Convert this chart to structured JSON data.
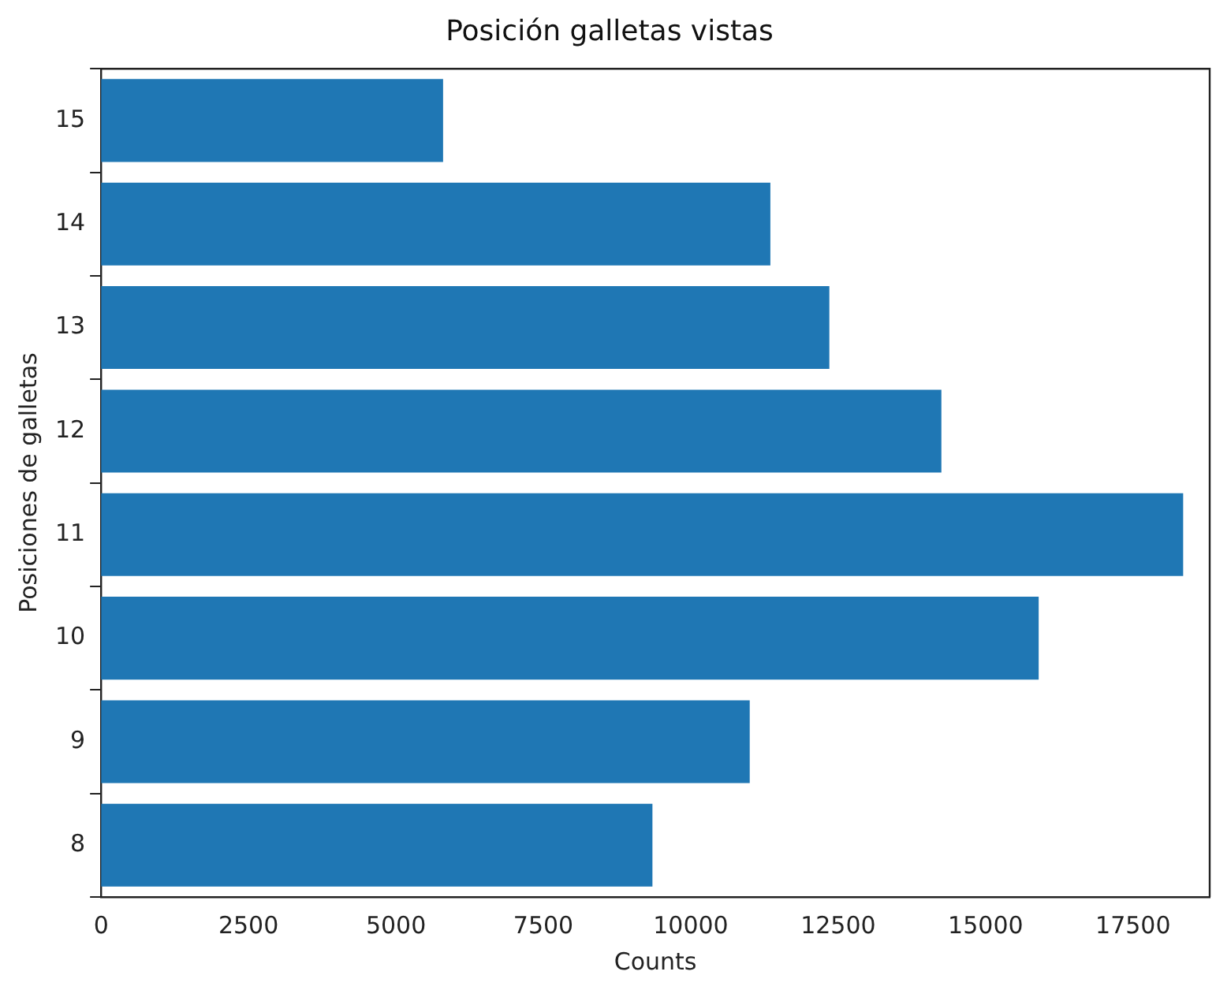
{
  "chart_data": {
    "type": "bar",
    "orientation": "horizontal",
    "title": "Posición galletas vistas",
    "xlabel": "Counts",
    "ylabel": "Posiciones de galletas",
    "categories": [
      "15",
      "14",
      "13",
      "12",
      "11",
      "10",
      "9",
      "8"
    ],
    "values": [
      5800,
      11350,
      12350,
      14250,
      18350,
      15900,
      11000,
      9350
    ],
    "color": "#1f77b4",
    "xlim": [
      0,
      18800
    ],
    "xticks": [
      0,
      2500,
      5000,
      7500,
      10000,
      12500,
      15000,
      17500
    ],
    "grid": false
  }
}
